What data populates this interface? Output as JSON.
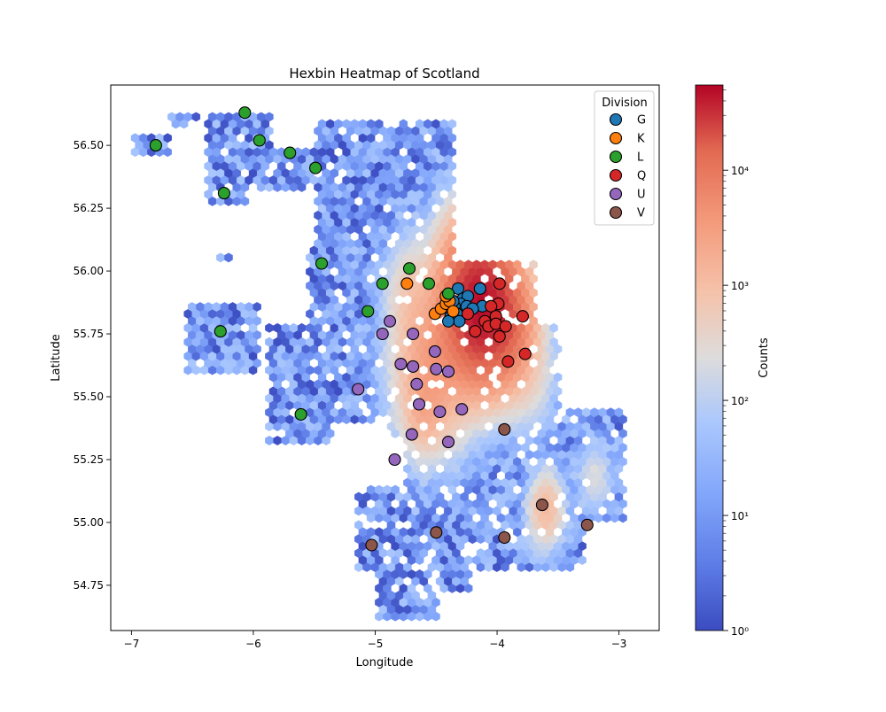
{
  "chart_data": {
    "type": "heatmap",
    "title": "Hexbin Heatmap of Scotland",
    "xlabel": "Longitude",
    "ylabel": "Latitude",
    "xlim": [
      -7.17,
      -2.67
    ],
    "ylim": [
      54.57,
      56.74
    ],
    "x_ticks": [
      -7,
      -6,
      -5,
      -4,
      -3
    ],
    "x_tick_labels": [
      "−7",
      "−6",
      "−5",
      "−4",
      "−3"
    ],
    "y_ticks": [
      54.75,
      55.0,
      55.25,
      55.5,
      55.75,
      56.0,
      56.25,
      56.5
    ],
    "y_tick_labels": [
      "54.75",
      "55.00",
      "55.25",
      "55.50",
      "55.75",
      "56.00",
      "56.25",
      "56.50"
    ],
    "colorbar": {
      "label": "Counts",
      "scale": "log",
      "range": [
        1,
        55000
      ],
      "ticks": [
        1,
        10,
        100,
        1000,
        10000
      ],
      "tick_labels": [
        "10⁰",
        "10¹",
        "10²",
        "10³",
        "10⁴"
      ],
      "colormap": "coolwarm"
    },
    "hexbin": {
      "cell_width_deg": 0.0667,
      "note_cells": [
        {
          "x": -6.89,
          "y": 56.52,
          "v": 8
        },
        {
          "x": -6.75,
          "y": 56.49,
          "v": 6
        },
        {
          "x": -6.55,
          "y": 56.61,
          "v": 10
        },
        {
          "x": -6.42,
          "y": 56.57,
          "v": 5
        },
        {
          "x": -6.25,
          "y": 56.55,
          "v": 4
        },
        {
          "x": -6.18,
          "y": 56.4,
          "v": 5
        },
        {
          "x": -6.02,
          "y": 56.47,
          "v": 6
        },
        {
          "x": -5.9,
          "y": 56.42,
          "v": 3
        },
        {
          "x": -5.7,
          "y": 56.47,
          "v": 12
        },
        {
          "x": -5.48,
          "y": 56.35,
          "v": 5
        },
        {
          "x": -6.35,
          "y": 56.3,
          "v": 6
        },
        {
          "x": -6.22,
          "y": 56.06,
          "v": 4
        },
        {
          "x": -6.35,
          "y": 55.8,
          "v": 6
        },
        {
          "x": -6.25,
          "y": 55.72,
          "v": 4
        },
        {
          "x": -6.15,
          "y": 55.82,
          "v": 8
        },
        {
          "x": -6.5,
          "y": 55.68,
          "v": 9
        },
        {
          "x": -5.8,
          "y": 55.45,
          "v": 4
        },
        {
          "x": -5.6,
          "y": 55.35,
          "v": 3
        },
        {
          "x": -5.15,
          "y": 56.55,
          "v": 3
        },
        {
          "x": -5.0,
          "y": 56.4,
          "v": 6
        },
        {
          "x": -4.75,
          "y": 56.5,
          "v": 4
        },
        {
          "x": -4.45,
          "y": 56.55,
          "v": 6
        },
        {
          "x": -4.3,
          "y": 56.25,
          "v": 15
        },
        {
          "x": -4.55,
          "y": 56.1,
          "v": 20
        },
        {
          "x": -4.2,
          "y": 55.95,
          "v": 2000
        },
        {
          "x": -4.1,
          "y": 55.88,
          "v": 40000
        },
        {
          "x": -4.0,
          "y": 55.82,
          "v": 12000
        },
        {
          "x": -3.85,
          "y": 55.85,
          "v": 600
        },
        {
          "x": -3.7,
          "y": 55.6,
          "v": 300
        },
        {
          "x": -4.5,
          "y": 55.5,
          "v": 1500
        },
        {
          "x": -4.6,
          "y": 55.75,
          "v": 800
        },
        {
          "x": -4.85,
          "y": 55.85,
          "v": 300
        },
        {
          "x": -4.2,
          "y": 55.3,
          "v": 80
        },
        {
          "x": -4.0,
          "y": 55.2,
          "v": 30
        },
        {
          "x": -3.6,
          "y": 55.05,
          "v": 900
        },
        {
          "x": -3.3,
          "y": 55.15,
          "v": 40
        },
        {
          "x": -3.1,
          "y": 55.2,
          "v": 15
        },
        {
          "x": -4.6,
          "y": 55.0,
          "v": 50
        },
        {
          "x": -4.8,
          "y": 54.85,
          "v": 20
        },
        {
          "x": -4.9,
          "y": 54.68,
          "v": 3
        }
      ]
    },
    "legend": {
      "title": "Division",
      "placement": "top-right",
      "entries": [
        {
          "name": "G",
          "color": "#1f77b4"
        },
        {
          "name": "K",
          "color": "#ff7f0e"
        },
        {
          "name": "L",
          "color": "#2ca02c"
        },
        {
          "name": "Q",
          "color": "#d62728"
        },
        {
          "name": "U",
          "color": "#9467bd"
        },
        {
          "name": "V",
          "color": "#8c564b"
        }
      ]
    },
    "series": [
      {
        "name": "G",
        "points": [
          [
            -4.32,
            55.93
          ],
          [
            -4.28,
            55.89
          ],
          [
            -4.24,
            55.9
          ],
          [
            -4.3,
            55.87
          ],
          [
            -4.35,
            55.86
          ],
          [
            -4.33,
            55.83
          ],
          [
            -4.38,
            55.82
          ],
          [
            -4.31,
            55.8
          ],
          [
            -4.4,
            55.8
          ],
          [
            -4.25,
            55.86
          ],
          [
            -4.14,
            55.93
          ],
          [
            -4.12,
            55.86
          ],
          [
            -4.2,
            55.85
          ],
          [
            -4.36,
            55.88
          ]
        ]
      },
      {
        "name": "K",
        "points": [
          [
            -4.74,
            55.95
          ],
          [
            -4.51,
            55.83
          ],
          [
            -4.46,
            55.85
          ],
          [
            -4.42,
            55.87
          ],
          [
            -4.39,
            55.88
          ],
          [
            -4.36,
            55.84
          ],
          [
            -4.42,
            55.9
          ]
        ]
      },
      {
        "name": "L",
        "points": [
          [
            -6.8,
            56.5
          ],
          [
            -6.07,
            56.63
          ],
          [
            -5.95,
            56.52
          ],
          [
            -5.7,
            56.47
          ],
          [
            -5.49,
            56.41
          ],
          [
            -6.24,
            56.31
          ],
          [
            -5.44,
            56.03
          ],
          [
            -4.94,
            55.95
          ],
          [
            -4.72,
            56.01
          ],
          [
            -4.56,
            55.95
          ],
          [
            -4.4,
            55.91
          ],
          [
            -5.06,
            55.84
          ],
          [
            -6.27,
            55.76
          ],
          [
            -5.61,
            55.43
          ]
        ]
      },
      {
        "name": "Q",
        "points": [
          [
            -3.98,
            55.95
          ],
          [
            -3.99,
            55.87
          ],
          [
            -4.05,
            55.86
          ],
          [
            -4.24,
            55.83
          ],
          [
            -4.01,
            55.82
          ],
          [
            -3.79,
            55.82
          ],
          [
            -4.1,
            55.8
          ],
          [
            -4.07,
            55.78
          ],
          [
            -4.01,
            55.79
          ],
          [
            -3.93,
            55.78
          ],
          [
            -4.18,
            55.76
          ],
          [
            -3.98,
            55.74
          ],
          [
            -3.77,
            55.67
          ],
          [
            -3.91,
            55.64
          ]
        ]
      },
      {
        "name": "U",
        "points": [
          [
            -4.88,
            55.8
          ],
          [
            -4.94,
            55.75
          ],
          [
            -4.69,
            55.75
          ],
          [
            -4.51,
            55.68
          ],
          [
            -4.79,
            55.63
          ],
          [
            -4.69,
            55.62
          ],
          [
            -4.5,
            55.61
          ],
          [
            -4.4,
            55.6
          ],
          [
            -5.14,
            55.53
          ],
          [
            -4.66,
            55.55
          ],
          [
            -4.64,
            55.47
          ],
          [
            -4.47,
            55.44
          ],
          [
            -4.29,
            55.45
          ],
          [
            -4.7,
            55.35
          ],
          [
            -4.4,
            55.32
          ],
          [
            -4.84,
            55.25
          ]
        ]
      },
      {
        "name": "V",
        "points": [
          [
            -3.94,
            55.37
          ],
          [
            -3.63,
            55.07
          ],
          [
            -3.26,
            54.99
          ],
          [
            -4.5,
            54.96
          ],
          [
            -3.94,
            54.94
          ],
          [
            -5.03,
            54.91
          ]
        ]
      }
    ]
  }
}
